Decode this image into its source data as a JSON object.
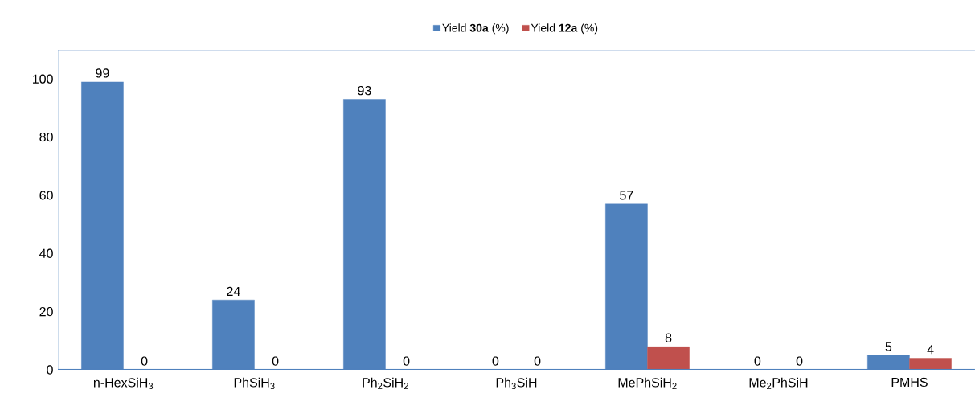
{
  "chart_data": {
    "type": "bar",
    "categories": [
      "n-HexSiH$_{3}$",
      "PhSiH$_{3}$",
      "Ph$_{2}$SiH$_{2}$",
      "Ph$_{3}$SiH",
      "MePhSiH$_{2}$",
      "Me$_{2}$PhSiH",
      "PMHS"
    ],
    "series": [
      {
        "name": "Yield **30a** (%)",
        "color": "#4f81bd",
        "values": [
          99,
          24,
          93,
          0,
          57,
          0,
          5
        ]
      },
      {
        "name": "Yield **12a** (%)",
        "color": "#c0504d",
        "values": [
          0,
          0,
          0,
          0,
          8,
          0,
          4
        ]
      }
    ],
    "ylim": [
      0,
      110
    ],
    "yticks": [
      0,
      20,
      40,
      60,
      80,
      100
    ],
    "data_labels": true,
    "legend": "top",
    "grid": false
  }
}
